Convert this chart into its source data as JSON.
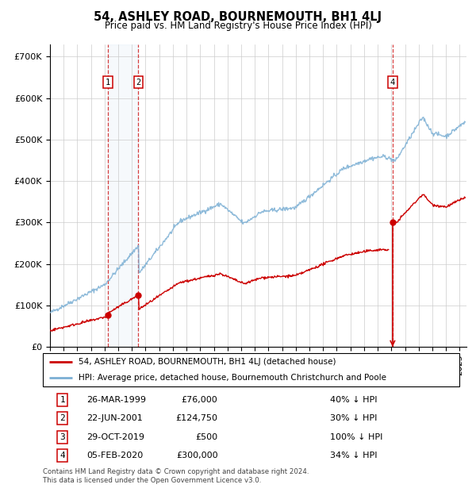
{
  "title": "54, ASHLEY ROAD, BOURNEMOUTH, BH1 4LJ",
  "subtitle": "Price paid vs. HM Land Registry's House Price Index (HPI)",
  "legend_line1": "54, ASHLEY ROAD, BOURNEMOUTH, BH1 4LJ (detached house)",
  "legend_line2": "HPI: Average price, detached house, Bournemouth Christchurch and Poole",
  "footer1": "Contains HM Land Registry data © Crown copyright and database right 2024.",
  "footer2": "This data is licensed under the Open Government Licence v3.0.",
  "yticks": [
    0,
    100000,
    200000,
    300000,
    400000,
    500000,
    600000,
    700000
  ],
  "ytick_labels": [
    "£0",
    "£100K",
    "£200K",
    "£300K",
    "£400K",
    "£500K",
    "£600K",
    "£700K"
  ],
  "xlim_start": 1995.0,
  "xlim_end": 2025.5,
  "ylim_min": 0,
  "ylim_max": 730000,
  "transactions": [
    {
      "num": 1,
      "date_str": "26-MAR-1999",
      "date_x": 1999.23,
      "price": 76000,
      "pct": "40% ↓ HPI",
      "label": "1"
    },
    {
      "num": 2,
      "date_str": "22-JUN-2001",
      "date_x": 2001.47,
      "price": 124750,
      "pct": "30% ↓ HPI",
      "label": "2"
    },
    {
      "num": 3,
      "date_str": "29-OCT-2019",
      "date_x": 2019.83,
      "price": 500,
      "pct": "100% ↓ HPI",
      "label": "3"
    },
    {
      "num": 4,
      "date_str": "05-FEB-2020",
      "date_x": 2020.09,
      "price": 300000,
      "pct": "34% ↓ HPI",
      "label": "4"
    }
  ],
  "shade_x_start": 1999.23,
  "shade_x_end": 2001.47,
  "transaction_color": "#cc0000",
  "hpi_color": "#7bafd4",
  "background_color": "#ffffff",
  "plot_bg_color": "#ffffff",
  "grid_color": "#cccccc",
  "label_box_color": "#cc0000",
  "shade_color": "#d8e8f5",
  "price_labels": [
    "£76,000",
    "£124,750",
    "£500",
    "£300,000"
  ]
}
